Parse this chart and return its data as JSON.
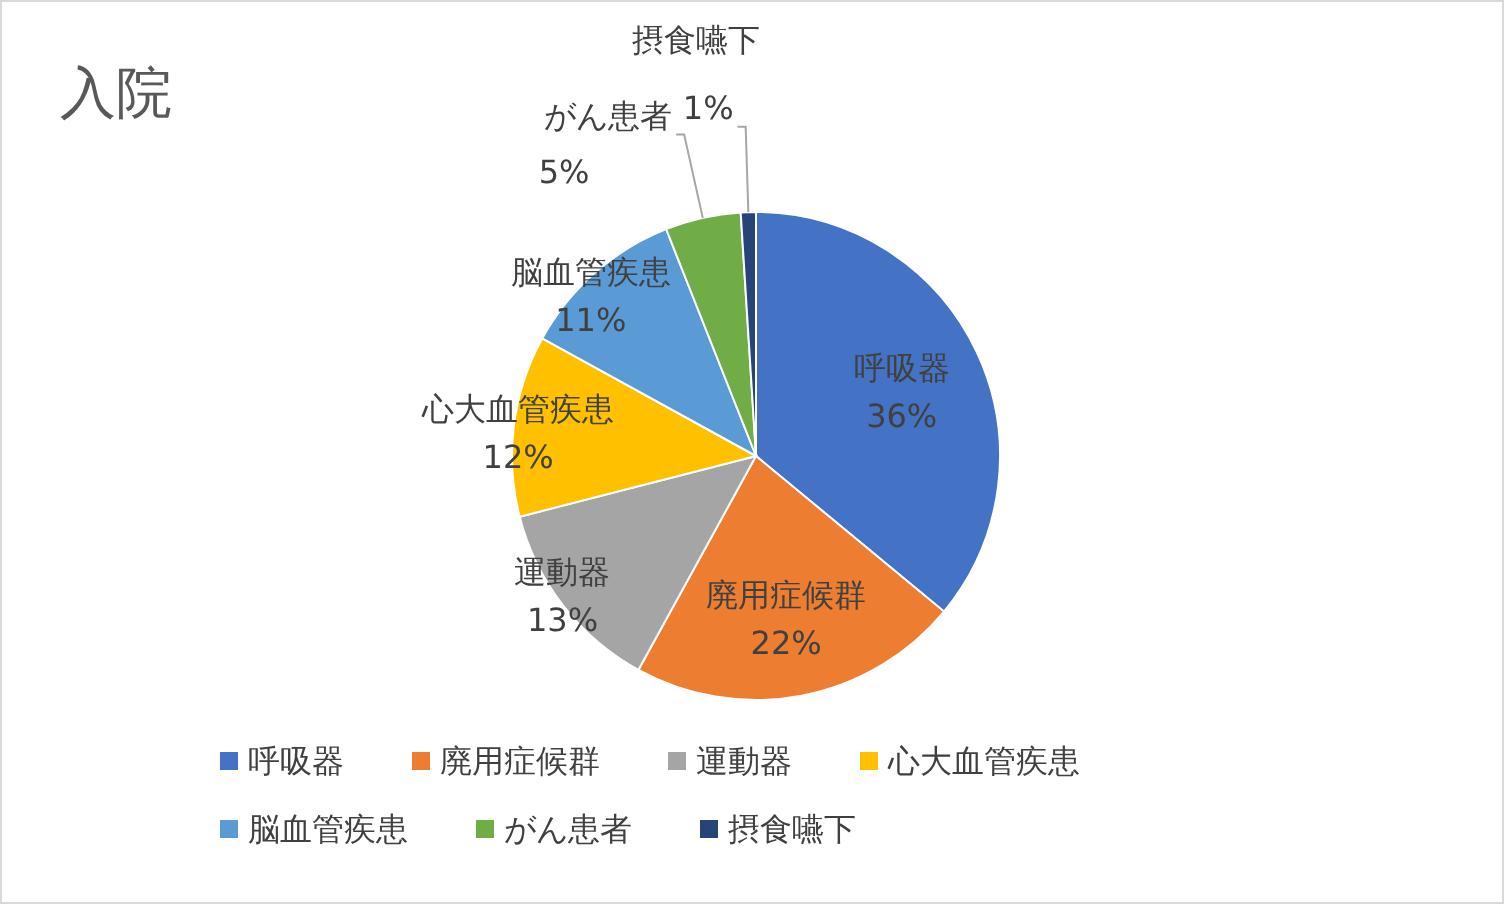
{
  "chart_data": {
    "type": "pie",
    "title": "入院",
    "categories": [
      "呼吸器",
      "廃用症候群",
      "運動器",
      "心大血管疾患",
      "脳血管疾患",
      "がん患者",
      "摂食嚥下"
    ],
    "values": [
      36,
      22,
      13,
      12,
      11,
      5,
      1
    ],
    "value_labels": [
      "36%",
      "22%",
      "13%",
      "12%",
      "11%",
      "5%",
      "1%"
    ],
    "colors": [
      "#4472c4",
      "#ed7d31",
      "#a5a5a5",
      "#ffc000",
      "#5b9bd5",
      "#70ad47",
      "#264478"
    ],
    "legend": "bottom"
  }
}
